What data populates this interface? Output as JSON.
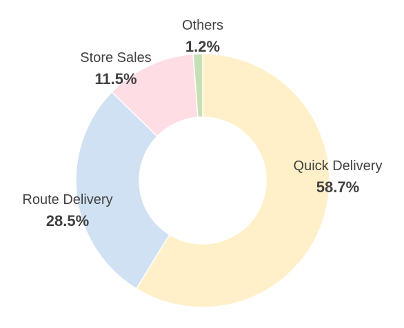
{
  "chart_data": {
    "type": "pie",
    "variant": "donut",
    "title": "",
    "categories": [
      "Quick Delivery",
      "Route Delivery",
      "Store Sales",
      "Others"
    ],
    "values": [
      58.7,
      28.5,
      11.5,
      1.2
    ],
    "value_labels": [
      "58.7%",
      "28.5%",
      "11.5%",
      "1.2%"
    ],
    "colors": [
      "#FFF0C9",
      "#CFE1F2",
      "#FFDDE5",
      "#C6E0B4"
    ],
    "start_angle_deg": 0,
    "direction": "clockwise",
    "legend": "none",
    "data_labels": "outside"
  }
}
